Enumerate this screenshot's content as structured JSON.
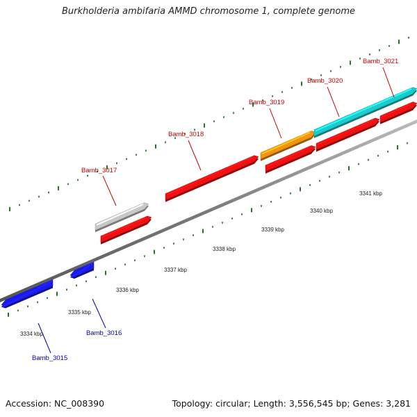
{
  "title": "Burkholderia ambifaria AMMD chromosome 1, complete genome",
  "footer": {
    "accession": "Accession: NC_008390",
    "topology": "Topology: circular; Length: 3,556,545 bp; Genes: 3,281"
  },
  "colors": {
    "forward_strand_label": "#cc0000",
    "reverse_strand_label": "#0000bb",
    "tick_mark": "#227722",
    "backbone": "#888888"
  },
  "scale_labels": [
    "3334 kbp",
    "3335 kbp",
    "3336 kbp",
    "3337 kbp",
    "3338 kbp",
    "3339 kbp",
    "3340 kbp",
    "3341 kbp"
  ],
  "genes": [
    {
      "name": "Bamb_3015",
      "strand": "reverse",
      "color": "#1a1aee",
      "label_color": "#0000bb"
    },
    {
      "name": "Bamb_3016",
      "strand": "reverse",
      "color": "#1a1aee",
      "label_color": "#0000bb"
    },
    {
      "name": "Bamb_3017",
      "strand": "forward",
      "color": "#c8c8c8",
      "label_color": "#cc0000"
    },
    {
      "name": "Bamb_3018",
      "strand": "forward",
      "color": "#ee1111",
      "label_color": "#cc0000"
    },
    {
      "name": "Bamb_3019",
      "strand": "forward",
      "color": "#f29411",
      "label_color": "#cc0000"
    },
    {
      "name": "Bamb_3020",
      "strand": "forward",
      "color": "#1ccccc",
      "label_color": "#cc0000"
    },
    {
      "name": "Bamb_3021",
      "strand": "forward",
      "color": "#1ccccc",
      "label_color": "#cc0000"
    }
  ]
}
